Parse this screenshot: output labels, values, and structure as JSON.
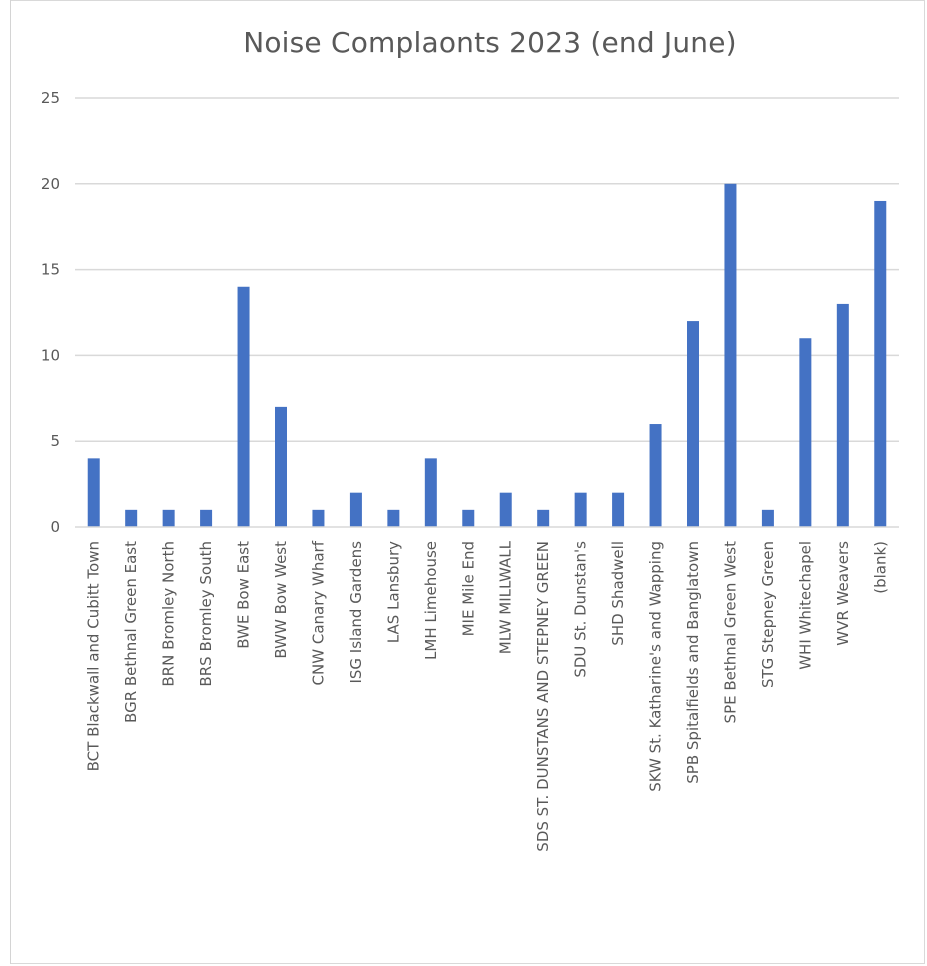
{
  "chart_data": {
    "type": "bar",
    "title": "Noise Complaonts 2023 (end June)",
    "xlabel": "",
    "ylabel": "",
    "ylim": [
      0,
      25
    ],
    "yticks": [
      0,
      5,
      10,
      15,
      20,
      25
    ],
    "grid": true,
    "legend": "none",
    "bar_color": "#4472c4",
    "grid_color": "#d9d9d9",
    "categories": [
      "BCT  Blackwall and Cubitt Town",
      "BGR  Bethnal Green East",
      "BRN  Bromley North",
      "BRS  Bromley South",
      "BWE  Bow East",
      "BWW  Bow West",
      "CNW  Canary Wharf",
      "ISG  Island Gardens",
      "LAS  Lansbury",
      "LMH  Limehouse",
      "MIE  Mile End",
      "MLW  MILLWALL",
      "SDS  ST. DUNSTANS AND STEPNEY GREEN",
      "SDU  St. Dunstan's",
      "SHD  Shadwell",
      "SKW  St. Katharine's and Wapping",
      "SPB  Spitalfields and Banglatown",
      "SPE  Bethnal Green West",
      "STG  Stepney Green",
      "WHI  Whitechapel",
      "WVR  Weavers",
      "(blank)"
    ],
    "values": [
      4,
      1,
      1,
      1,
      14,
      7,
      1,
      2,
      1,
      4,
      1,
      2,
      1,
      2,
      2,
      6,
      12,
      20,
      1,
      11,
      13,
      19
    ]
  }
}
